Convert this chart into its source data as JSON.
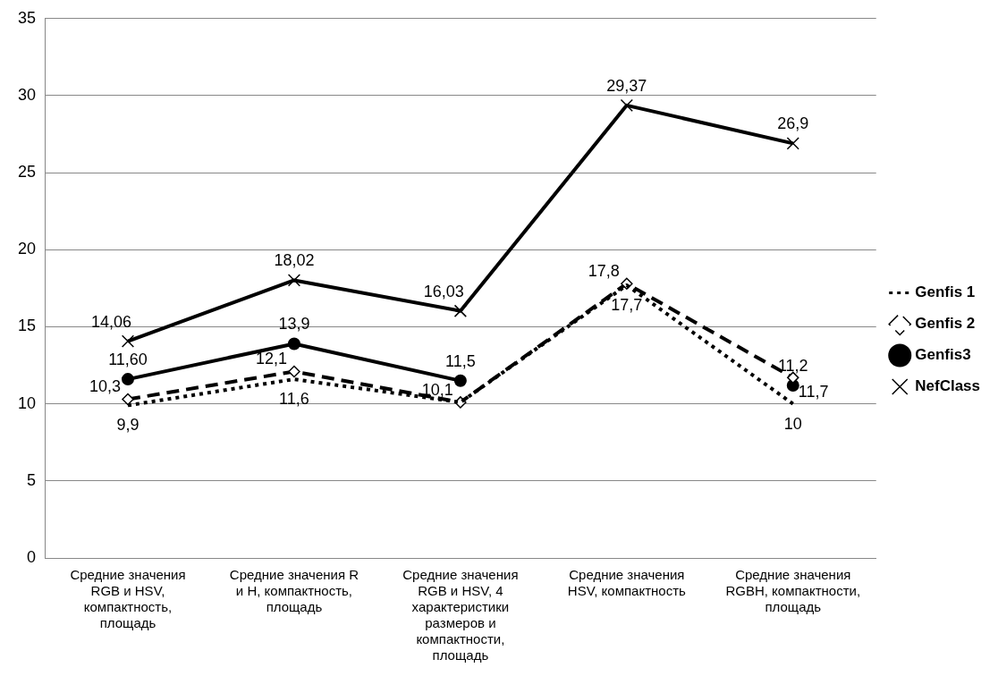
{
  "chart_data": {
    "type": "line",
    "categories": [
      "Средние значения RGB и HSV, компактность, площадь",
      "Средние значения R и H, компактность, площадь",
      "Средние значения RGB и HSV, 4 характеристики размеров и компактности, площадь",
      "Средние значения HSV, компактность",
      "Средние значения RGBH, компактности, площадь"
    ],
    "series": [
      {
        "name": "Genfis 1",
        "color": "#000000",
        "marker": "none",
        "line_style": "dotted",
        "values": [
          9.9,
          11.6,
          10.1,
          17.7,
          10
        ],
        "value_labels": [
          "9,9",
          "11,6",
          null,
          "17,7",
          "10"
        ]
      },
      {
        "name": "Genfis 2",
        "color": "#000000",
        "marker": "diamond",
        "line_style": "dashed",
        "values": [
          10.3,
          12.1,
          10.1,
          17.8,
          11.7
        ],
        "value_labels": [
          "10,3",
          "12,1",
          "10,1",
          "17,8",
          "11,7"
        ]
      },
      {
        "name": "Genfis3",
        "color": "#000000",
        "marker": "circle",
        "line_style": "solid",
        "values": [
          11.6,
          13.9,
          11.5,
          null,
          11.2
        ],
        "value_labels": [
          "11,60",
          "13,9",
          "11,5",
          null,
          "11,2"
        ]
      },
      {
        "name": "NefClass",
        "color": "#000000",
        "marker": "cross",
        "line_style": "solid",
        "values": [
          14.06,
          18.02,
          16.03,
          29.37,
          26.9
        ],
        "value_labels": [
          "14,06",
          "18,02",
          "16,03",
          "29,37",
          "26,9"
        ]
      }
    ],
    "ylim": [
      0,
      35
    ],
    "yticks": [
      0,
      5,
      10,
      15,
      20,
      25,
      30,
      35
    ],
    "grid": "y",
    "legend": "right"
  }
}
